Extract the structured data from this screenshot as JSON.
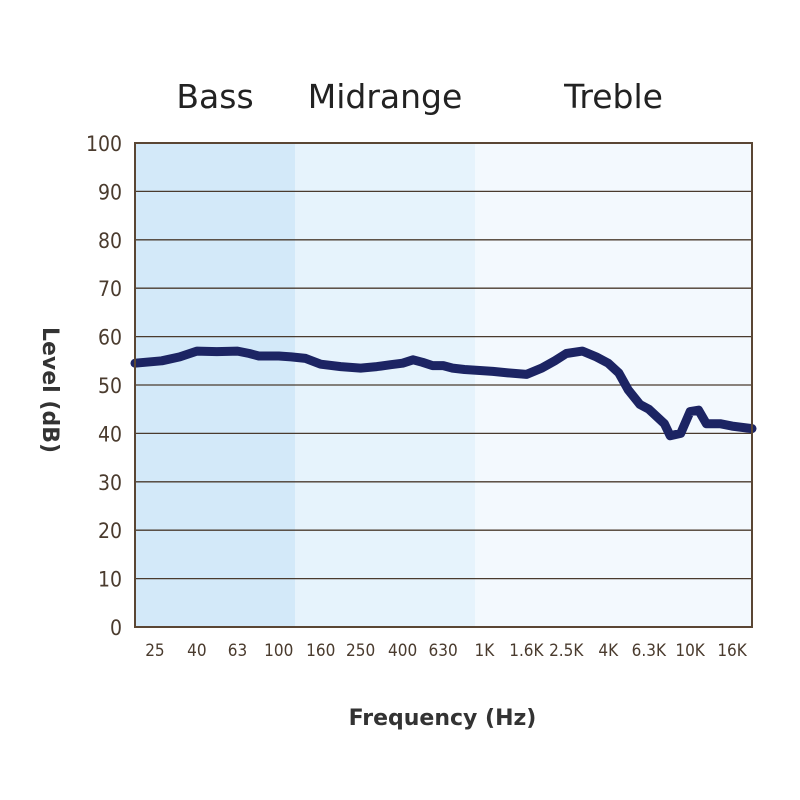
{
  "chart_data": {
    "type": "line",
    "title": "",
    "xlabel": "Frequency (Hz)",
    "ylabel": "Level (dB)",
    "ylim": [
      0,
      100
    ],
    "yticks": [
      0,
      10,
      20,
      30,
      40,
      50,
      60,
      70,
      80,
      90,
      100
    ],
    "xticks": [
      "25",
      "40",
      "63",
      "100",
      "160",
      "250",
      "400",
      "630",
      "1K",
      "1.6K",
      "2.5K",
      "4K",
      "6.3K",
      "10K",
      "16K"
    ],
    "xlim_hz": [
      20,
      20000
    ],
    "x_scale": "log",
    "grid": "horizontal",
    "bands": [
      {
        "label": "Bass",
        "from_hz": 20,
        "to_hz": 120,
        "color": "#d3e9f9"
      },
      {
        "label": "Midrange",
        "from_hz": 120,
        "to_hz": 900,
        "color": "#e6f3fc"
      },
      {
        "label": "Treble",
        "from_hz": 900,
        "to_hz": 20000,
        "color": "#f3f9fe"
      }
    ],
    "line_color": "#1c2463",
    "series": [
      {
        "x": [
          20,
          27,
          33,
          40,
          50,
          63,
          72,
          80,
          100,
          115,
          135,
          160,
          200,
          250,
          300,
          350,
          400,
          450,
          500,
          560,
          630,
          700,
          800,
          950,
          1100,
          1300,
          1600,
          1900,
          2200,
          2500,
          3000,
          3500,
          4000,
          4500,
          5000,
          5700,
          6300,
          7500,
          8000,
          9000,
          10000,
          11000,
          12000,
          14000,
          16000,
          20000
        ],
        "y": [
          54.5,
          55,
          55.8,
          57,
          56.9,
          57,
          56.5,
          56,
          56,
          55.8,
          55.5,
          54.3,
          53.8,
          53.5,
          53.8,
          54.2,
          54.5,
          55.2,
          54.7,
          54,
          54,
          53.5,
          53.2,
          53,
          52.8,
          52.5,
          52.2,
          53.5,
          55,
          56.5,
          57,
          55.8,
          54.5,
          52.5,
          49,
          46,
          45,
          42,
          39.5,
          40,
          44.5,
          44.8,
          42,
          42,
          41.5,
          41
        ]
      }
    ]
  }
}
